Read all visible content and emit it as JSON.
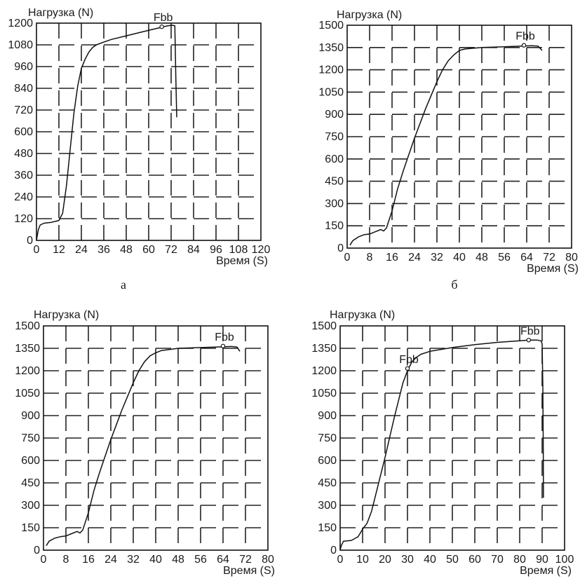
{
  "figure": {
    "captions": [
      "а",
      "б"
    ]
  },
  "chart_data": [
    {
      "type": "line",
      "ylabel": "Нагрузка (N)",
      "xlabel": "Время (S)",
      "xlim": [
        0,
        120
      ],
      "ylim": [
        0,
        1200
      ],
      "x_ticks": [
        "0",
        "12",
        "24",
        "36",
        "48",
        "60",
        "72",
        "84",
        "96",
        "108",
        "120"
      ],
      "y_ticks": [
        "0",
        "120",
        "240",
        "360",
        "480",
        "600",
        "720",
        "840",
        "960",
        "1080",
        "1200"
      ],
      "grid": true,
      "series": [
        {
          "x": [
            0,
            1,
            2,
            4,
            8,
            10,
            12,
            14,
            16,
            18,
            20,
            22,
            24,
            26,
            28,
            30,
            32,
            36,
            40,
            48,
            56,
            62,
            66,
            68,
            70,
            72,
            73,
            74,
            74.5,
            75
          ],
          "y": [
            0,
            60,
            85,
            95,
            100,
            105,
            110,
            150,
            300,
            500,
            700,
            850,
            950,
            1000,
            1040,
            1065,
            1080,
            1095,
            1110,
            1130,
            1150,
            1165,
            1175,
            1180,
            1185,
            1188,
            1188,
            1185,
            900,
            680
          ]
        }
      ],
      "annotations": [
        {
          "text": "Fbb",
          "x": 67,
          "y": 1180
        }
      ]
    },
    {
      "type": "line",
      "ylabel": "Нагрузка (N)",
      "xlabel": "Время (S)",
      "xlim": [
        0,
        80
      ],
      "ylim": [
        0,
        1500
      ],
      "x_ticks": [
        "0",
        "8",
        "16",
        "24",
        "32",
        "40",
        "48",
        "56",
        "64",
        "72",
        "80"
      ],
      "y_ticks": [
        "0",
        "150",
        "300",
        "450",
        "600",
        "750",
        "900",
        "1050",
        "1200",
        "1350",
        "1500"
      ],
      "grid": true,
      "series": [
        {
          "x": [
            1,
            2,
            4,
            6,
            8,
            10,
            12,
            13,
            14,
            16,
            18,
            20,
            22,
            24,
            26,
            28,
            30,
            32,
            34,
            36,
            38,
            40,
            42,
            48,
            56,
            62,
            66,
            68,
            69.5
          ],
          "y": [
            20,
            50,
            75,
            90,
            95,
            110,
            125,
            115,
            135,
            250,
            400,
            520,
            630,
            740,
            840,
            940,
            1030,
            1120,
            1200,
            1260,
            1300,
            1330,
            1340,
            1350,
            1355,
            1360,
            1362,
            1360,
            1330
          ]
        }
      ],
      "annotations": [
        {
          "text": "Fbb",
          "x": 63,
          "y": 1365
        }
      ]
    },
    {
      "type": "line",
      "ylabel": "Нагрузка (N)",
      "xlabel": "Время (S)",
      "xlim": [
        0,
        80
      ],
      "ylim": [
        0,
        1500
      ],
      "x_ticks": [
        "0",
        "8",
        "16",
        "24",
        "32",
        "40",
        "48",
        "56",
        "64",
        "72",
        "80"
      ],
      "y_ticks": [
        "0",
        "150",
        "300",
        "450",
        "600",
        "750",
        "900",
        "1050",
        "1200",
        "1350",
        "1500"
      ],
      "grid": true,
      "series": [
        {
          "x": [
            1,
            2,
            4,
            6,
            8,
            10,
            12,
            13,
            14,
            16,
            18,
            20,
            22,
            24,
            26,
            28,
            30,
            32,
            34,
            36,
            38,
            40,
            42,
            48,
            56,
            64,
            67,
            69,
            70
          ],
          "y": [
            30,
            60,
            80,
            90,
            95,
            110,
            125,
            115,
            135,
            250,
            400,
            520,
            630,
            740,
            840,
            940,
            1030,
            1120,
            1200,
            1260,
            1300,
            1320,
            1335,
            1350,
            1355,
            1360,
            1362,
            1358,
            1330
          ]
        }
      ],
      "annotations": [
        {
          "text": "Fbb",
          "x": 64,
          "y": 1365
        }
      ]
    },
    {
      "type": "line",
      "ylabel": "Нагрузка (N)",
      "xlabel": "Время (S)",
      "xlim": [
        0,
        100
      ],
      "ylim": [
        0,
        1500
      ],
      "x_ticks": [
        "0",
        "10",
        "20",
        "30",
        "40",
        "50",
        "60",
        "70",
        "80",
        "90",
        "100"
      ],
      "y_ticks": [
        "0",
        "150",
        "300",
        "450",
        "600",
        "750",
        "900",
        "1050",
        "1200",
        "1350",
        "1500"
      ],
      "grid": true,
      "series": [
        {
          "x": [
            0,
            0.5,
            1.5,
            3,
            5,
            8,
            10,
            12,
            14,
            16,
            18,
            20,
            22,
            24,
            26,
            28,
            30,
            32,
            34,
            36,
            40,
            50,
            60,
            70,
            80,
            84,
            88,
            89.5,
            90,
            90.3,
            90.5,
            90.6
          ],
          "y": [
            0,
            30,
            60,
            62,
            65,
            90,
            140,
            180,
            260,
            380,
            500,
            620,
            750,
            880,
            1000,
            1120,
            1200,
            1260,
            1290,
            1310,
            1330,
            1355,
            1375,
            1390,
            1400,
            1405,
            1405,
            1400,
            1380,
            1100,
            700,
            350
          ]
        }
      ],
      "annotations": [
        {
          "text": "Fbb",
          "x": 84,
          "y": 1405
        },
        {
          "text": "Fpb",
          "x": 30,
          "y": 1215
        }
      ]
    }
  ]
}
